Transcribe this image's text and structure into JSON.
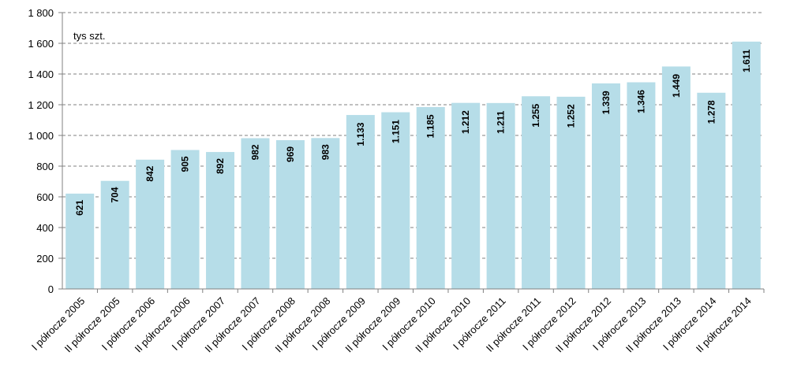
{
  "chart_data": {
    "type": "bar",
    "unit_label": "tys  szt.",
    "categories": [
      "I półrocze 2005",
      "II półrocze 2005",
      "I półrocze 2006",
      "II półrocze 2006",
      "I półrocze 2007",
      "II półrocze 2007",
      "I półrocze 2008",
      "II półrocze 2008",
      "I półrocze 2009",
      "II półrocze 2009",
      "I półrocze 2010",
      "II półrocze 2010",
      "I półrocze 2011",
      "II półrocze 2011",
      "I półrocze 2012",
      "II półrocze 2012",
      "I półrocze 2013",
      "II półrocze 2013",
      "I półrocze 2014",
      "II półrocze 2014"
    ],
    "values": [
      621,
      704,
      842,
      905,
      892,
      982,
      969,
      983,
      1133,
      1151,
      1185,
      1212,
      1211,
      1255,
      1252,
      1339,
      1346,
      1449,
      1278,
      1611
    ],
    "data_labels": [
      "621",
      "704",
      "842",
      "905",
      "892",
      "982",
      "969",
      "983",
      "1.133",
      "1.151",
      "1.185",
      "1.212",
      "1.211",
      "1.255",
      "1.252",
      "1.339",
      "1.346",
      "1.449",
      "1.278",
      "1.611"
    ],
    "yticks": [
      0,
      200,
      400,
      600,
      800,
      1000,
      1200,
      1400,
      1600,
      1800
    ],
    "ytick_labels": [
      "0",
      "200",
      "400",
      "600",
      "800",
      "1 000",
      "1 200",
      "1 400",
      "1 600",
      "1 800"
    ],
    "ylim": [
      0,
      1800
    ],
    "grid": true,
    "bar_color": "#b6dde8",
    "grid_color": "#808080"
  }
}
